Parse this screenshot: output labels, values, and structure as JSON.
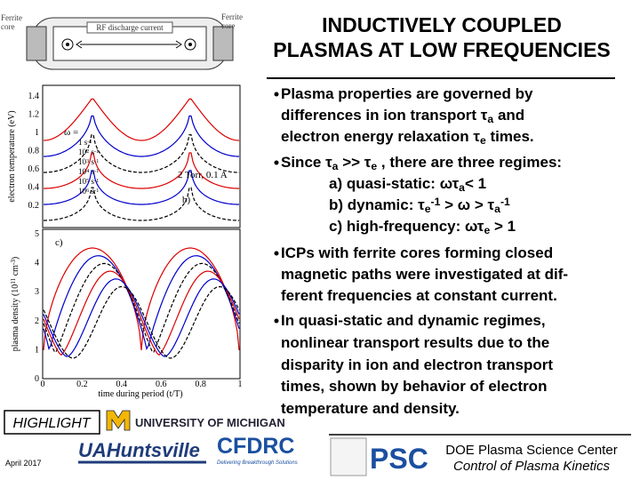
{
  "title": {
    "lines": [
      "INDUCTIVELY COUPLED",
      "PLASMAS AT LOW FREQUENCIES"
    ]
  },
  "figure": {
    "diagram": {
      "left_label": [
        "Ferrite",
        "core"
      ],
      "center_label": "RF discharge current",
      "right_label": [
        "Ferrite",
        "core"
      ]
    },
    "plot_b": {
      "ylabel": "electron temperature (eV)",
      "yticks": [
        "1.4",
        "1.2",
        "1",
        "0.8",
        "0.6",
        "0.4",
        "0.2"
      ],
      "legend_title": "ω =",
      "legend": [
        [
          {
            "t": "1 s"
          },
          {
            "t": "-1",
            "s": "sup"
          }
        ],
        [
          {
            "t": "10"
          },
          {
            "t": "2",
            "s": "sup"
          },
          {
            "t": " s"
          },
          {
            "t": "-1",
            "s": "sup"
          }
        ],
        [
          {
            "t": "10"
          },
          {
            "t": "3",
            "s": "sup"
          },
          {
            "t": " s"
          },
          {
            "t": "-1",
            "s": "sup"
          }
        ],
        [
          {
            "t": "10"
          },
          {
            "t": "4",
            "s": "sup"
          },
          {
            "t": " s"
          },
          {
            "t": "-1",
            "s": "sup"
          }
        ],
        [
          {
            "t": "10"
          },
          {
            "t": "5",
            "s": "sup"
          },
          {
            "t": " s"
          },
          {
            "t": "-1",
            "s": "sup"
          }
        ],
        [
          {
            "t": "10"
          },
          {
            "t": "6",
            "s": "sup"
          },
          {
            "t": " s"
          },
          {
            "t": "-1",
            "s": "sup"
          }
        ]
      ],
      "conditions": "2 Torr, 0.1 A",
      "panel": "b)"
    },
    "plot_c": {
      "ylabel": [
        {
          "t": "plasma density (10"
        },
        {
          "t": "11",
          "s": "sup"
        },
        {
          "t": " cm"
        },
        {
          "t": "-3",
          "s": "sup"
        },
        {
          "t": ")"
        }
      ],
      "yticks": [
        "5",
        "4",
        "3",
        "2",
        "1",
        "0"
      ],
      "xticks": [
        "0",
        "0.2",
        "0.4",
        "0.6",
        "0.8",
        "1"
      ],
      "xlabel": "time during period (t/T)",
      "panel": "c)"
    }
  },
  "bullets": [
    {
      "bullet": true,
      "indent": 0,
      "segments": [
        {
          "t": "Plasma properties are governed by"
        }
      ]
    },
    {
      "bullet": false,
      "indent": 0,
      "segments": [
        {
          "t": "differences in ion transport τ"
        },
        {
          "t": "a",
          "s": "sub"
        },
        {
          "t": " and"
        }
      ]
    },
    {
      "bullet": false,
      "indent": 0,
      "segments": [
        {
          "t": "electron energy relaxation τ"
        },
        {
          "t": "e",
          "s": "sub"
        },
        {
          "t": " times."
        }
      ]
    },
    {
      "bullet": true,
      "indent": 0,
      "segments": [
        {
          "t": "Since τ"
        },
        {
          "t": "a",
          "s": "sub"
        },
        {
          "t": " >> τ"
        },
        {
          "t": "e",
          "s": "sub"
        },
        {
          "t": " , there are three regimes:"
        }
      ]
    },
    {
      "bullet": false,
      "indent": 1,
      "segments": [
        {
          "t": "a) quasi-static: ωτ"
        },
        {
          "t": "a",
          "s": "sub"
        },
        {
          "t": "< 1"
        }
      ]
    },
    {
      "bullet": false,
      "indent": 1,
      "segments": [
        {
          "t": "b) dynamic: τ"
        },
        {
          "t": "e",
          "s": "sub"
        },
        {
          "t": "-1",
          "s": "sup"
        },
        {
          "t": " > ω > τ"
        },
        {
          "t": "a",
          "s": "sub"
        },
        {
          "t": "-1",
          "s": "sup"
        }
      ]
    },
    {
      "bullet": false,
      "indent": 1,
      "segments": [
        {
          "t": "c) high-frequency: ωτ"
        },
        {
          "t": "e",
          "s": "sub"
        },
        {
          "t": " > 1"
        }
      ]
    },
    {
      "bullet": true,
      "indent": 0,
      "segments": [
        {
          "t": "ICPs with ferrite cores forming closed"
        }
      ]
    },
    {
      "bullet": false,
      "indent": 0,
      "segments": [
        {
          "t": "magnetic paths were investigated at dif-"
        }
      ]
    },
    {
      "bullet": false,
      "indent": 0,
      "segments": [
        {
          "t": "ferent frequencies at constant current."
        }
      ]
    },
    {
      "bullet": true,
      "indent": 0,
      "segments": [
        {
          "t": "In quasi-static and dynamic regimes,"
        }
      ]
    },
    {
      "bullet": false,
      "indent": 0,
      "segments": [
        {
          "t": "nonlinear transport results due to the"
        }
      ]
    },
    {
      "bullet": false,
      "indent": 0,
      "segments": [
        {
          "t": "disparity in ion and electron transport"
        }
      ]
    },
    {
      "bullet": false,
      "indent": 0,
      "segments": [
        {
          "t": "times, shown by behavior of electron"
        }
      ]
    },
    {
      "bullet": false,
      "indent": 0,
      "segments": [
        {
          "t": "temperature and density."
        }
      ]
    }
  ],
  "footer": {
    "highlight": "HIGHLIGHT",
    "date": "April 2017",
    "michigan": "UNIVERSITY OF MICHIGAN",
    "uah": "UAHuntsville",
    "cfdrc": "CFDRC",
    "cfdrc_tagline": "Delivering Breakthrough Solutions",
    "psc": "PSC",
    "center": "DOE Plasma Science Center",
    "program": "Control of Plasma Kinetics"
  }
}
